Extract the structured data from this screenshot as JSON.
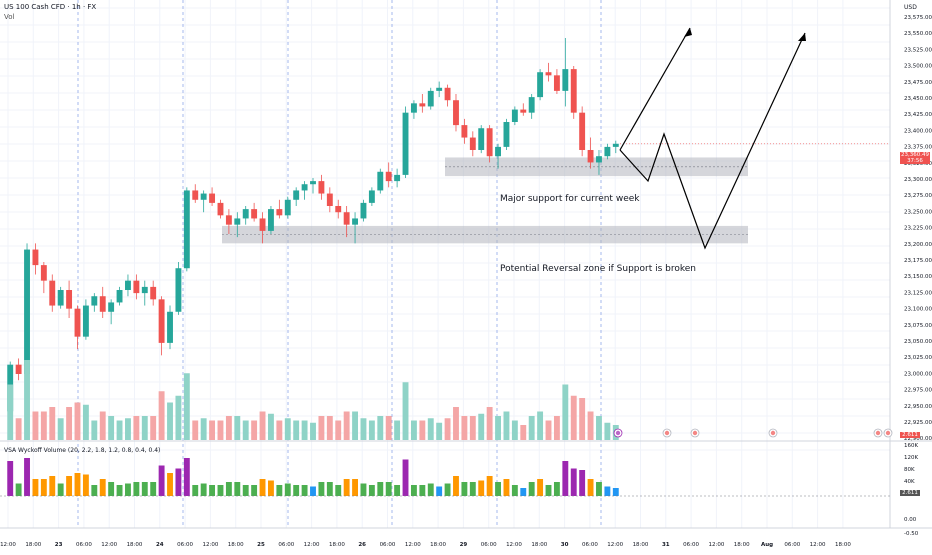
{
  "header": {
    "symbol_line": "US 100 Cash CFD · 1h · FX",
    "vol_label": "Vol",
    "wyckoff_label": "VSA Wyckoff Volume (20, 2.2, 1.8, 1.2, 0.8, 0.4, 0.4)"
  },
  "price_axis": {
    "currency": "USD",
    "ticks": [
      "23,575.00",
      "23,550.00",
      "23,525.00",
      "23,500.00",
      "23,475.00",
      "23,450.00",
      "23,425.00",
      "23,400.00",
      "23,375.00",
      "23,325.00",
      "23,300.00",
      "23,275.00",
      "23,250.00",
      "23,225.00",
      "23,200.00",
      "23,175.00",
      "23,150.00",
      "23,125.00",
      "23,100.00",
      "23,075.00",
      "23,050.00",
      "23,025.00",
      "23,000.00",
      "22,975.00",
      "22,950.00",
      "22,925.00",
      "22,900.00"
    ],
    "last_price": "23,360.49",
    "countdown": "37:56",
    "vol_value": "2.611"
  },
  "wyckoff_axis": {
    "ticks": [
      "120K",
      "80K",
      "40K",
      "0.00",
      "-0.50"
    ],
    "top_tick": "160K",
    "vol_value": "2.611"
  },
  "time_axis": {
    "labels": [
      "12:00",
      "18:00",
      "23",
      "06:00",
      "12:00",
      "18:00",
      "24",
      "06:00",
      "12:00",
      "18:00",
      "25",
      "06:00",
      "12:00",
      "18:00",
      "26",
      "06:00",
      "12:00",
      "18:00",
      "29",
      "06:00",
      "12:00",
      "18:00",
      "30",
      "06:00",
      "12:00",
      "18:00",
      "31",
      "06:00",
      "12:00",
      "18:00",
      "Aug",
      "06:00",
      "12:00",
      "18:00"
    ]
  },
  "annotations": {
    "major_support": "Major support for current week",
    "reversal_zone": "Potential Reversal zone if Support is broken"
  },
  "colors": {
    "up": "#26a69a",
    "down": "#ef5350",
    "vol_up": "#8fd3c7",
    "vol_down": "#f4a6a6",
    "zone": "#b2b5be",
    "purple": "#9c27b0",
    "orange": "#ff9800",
    "blue": "#2196f3",
    "green": "#4caf50",
    "last_price_badge": "#ef5350"
  },
  "chart_data": {
    "type": "candlestick",
    "price_range": [
      22900,
      23575
    ],
    "candles": [
      [
        22930,
        23010,
        22900,
        23005
      ],
      [
        23005,
        23015,
        22980,
        22990
      ],
      [
        22990,
        23200,
        22985,
        23190
      ],
      [
        23190,
        23200,
        23150,
        23165
      ],
      [
        23165,
        23170,
        23120,
        23140
      ],
      [
        23140,
        23150,
        23090,
        23100
      ],
      [
        23100,
        23130,
        23095,
        23125
      ],
      [
        23125,
        23140,
        23080,
        23095
      ],
      [
        23095,
        23100,
        23030,
        23050
      ],
      [
        23050,
        23110,
        23045,
        23100
      ],
      [
        23100,
        23120,
        23090,
        23115
      ],
      [
        23115,
        23130,
        23080,
        23090
      ],
      [
        23090,
        23110,
        23070,
        23105
      ],
      [
        23105,
        23130,
        23100,
        23125
      ],
      [
        23125,
        23150,
        23115,
        23140
      ],
      [
        23140,
        23150,
        23110,
        23120
      ],
      [
        23120,
        23140,
        23100,
        23130
      ],
      [
        23130,
        23140,
        23100,
        23110
      ],
      [
        23110,
        23115,
        23020,
        23040
      ],
      [
        23040,
        23100,
        23030,
        23090
      ],
      [
        23090,
        23170,
        23085,
        23160
      ],
      [
        23160,
        23290,
        23155,
        23285
      ],
      [
        23285,
        23295,
        23265,
        23270
      ],
      [
        23270,
        23285,
        23250,
        23280
      ],
      [
        23280,
        23290,
        23260,
        23265
      ],
      [
        23265,
        23270,
        23240,
        23245
      ],
      [
        23245,
        23255,
        23215,
        23230
      ],
      [
        23230,
        23250,
        23210,
        23240
      ],
      [
        23240,
        23260,
        23230,
        23255
      ],
      [
        23255,
        23265,
        23235,
        23240
      ],
      [
        23240,
        23250,
        23200,
        23220
      ],
      [
        23220,
        23260,
        23215,
        23255
      ],
      [
        23255,
        23270,
        23240,
        23245
      ],
      [
        23245,
        23275,
        23240,
        23270
      ],
      [
        23270,
        23290,
        23260,
        23285
      ],
      [
        23285,
        23300,
        23270,
        23295
      ],
      [
        23295,
        23305,
        23280,
        23300
      ],
      [
        23300,
        23310,
        23270,
        23280
      ],
      [
        23280,
        23290,
        23250,
        23260
      ],
      [
        23260,
        23270,
        23240,
        23250
      ],
      [
        23250,
        23260,
        23210,
        23230
      ],
      [
        23230,
        23250,
        23200,
        23240
      ],
      [
        23240,
        23270,
        23235,
        23265
      ],
      [
        23265,
        23290,
        23260,
        23285
      ],
      [
        23285,
        23320,
        23280,
        23315
      ],
      [
        23315,
        23330,
        23290,
        23300
      ],
      [
        23300,
        23320,
        23290,
        23310
      ],
      [
        23310,
        23420,
        23305,
        23410
      ],
      [
        23410,
        23430,
        23400,
        23425
      ],
      [
        23425,
        23440,
        23410,
        23420
      ],
      [
        23420,
        23450,
        23415,
        23445
      ],
      [
        23445,
        23460,
        23435,
        23450
      ],
      [
        23450,
        23455,
        23420,
        23430
      ],
      [
        23430,
        23440,
        23380,
        23390
      ],
      [
        23390,
        23400,
        23360,
        23370
      ],
      [
        23370,
        23380,
        23340,
        23350
      ],
      [
        23350,
        23390,
        23345,
        23385
      ],
      [
        23385,
        23390,
        23330,
        23340
      ],
      [
        23340,
        23360,
        23320,
        23355
      ],
      [
        23355,
        23400,
        23350,
        23395
      ],
      [
        23395,
        23420,
        23390,
        23415
      ],
      [
        23415,
        23425,
        23405,
        23410
      ],
      [
        23410,
        23440,
        23400,
        23435
      ],
      [
        23435,
        23480,
        23430,
        23475
      ],
      [
        23475,
        23490,
        23460,
        23470
      ],
      [
        23470,
        23480,
        23440,
        23445
      ],
      [
        23445,
        23530,
        23420,
        23480
      ],
      [
        23480,
        23485,
        23400,
        23410
      ],
      [
        23410,
        23420,
        23340,
        23350
      ],
      [
        23350,
        23370,
        23320,
        23330
      ],
      [
        23330,
        23350,
        23310,
        23340
      ],
      [
        23340,
        23360,
        23335,
        23355
      ],
      [
        23355,
        23365,
        23345,
        23360
      ]
    ],
    "zones": [
      {
        "label": "Major support for current week",
        "low": 23308,
        "high": 23338
      },
      {
        "label": "Potential Reversal zone if Support is broken",
        "low": 23200,
        "high": 23228
      }
    ],
    "projection_paths": [
      [
        [
          23362,
          0
        ],
        [
          23560,
          1
        ]
      ],
      [
        [
          23362,
          0
        ],
        [
          23320,
          1
        ],
        [
          23400,
          2
        ],
        [
          23220,
          3
        ],
        [
          23560,
          4
        ]
      ]
    ]
  }
}
